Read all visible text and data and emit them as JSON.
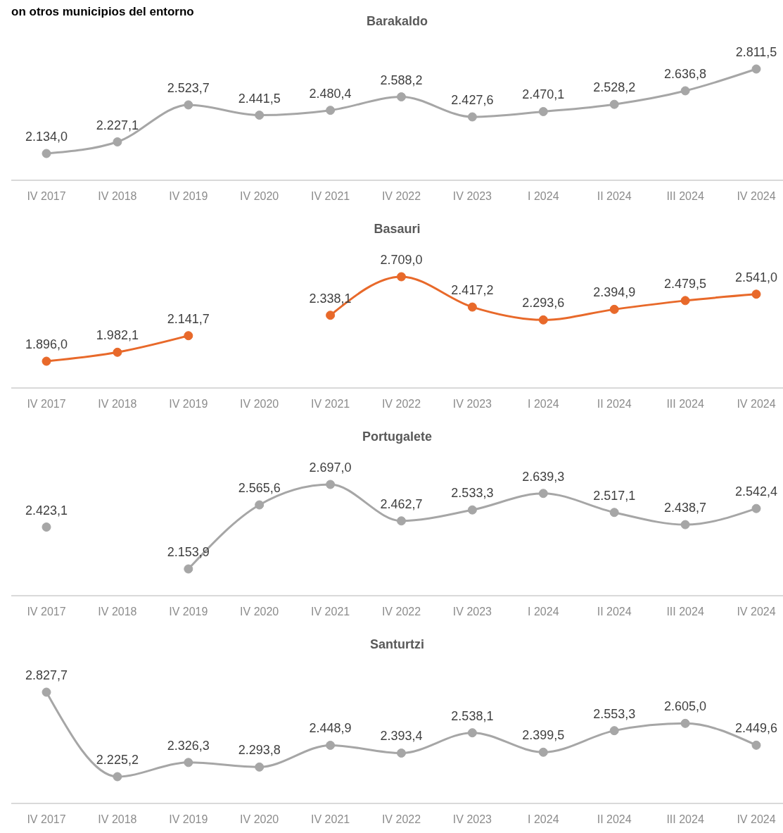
{
  "chart_data": [
    {
      "type": "line",
      "title": "Barakaldo",
      "annotations": [
        "on otros municipios del entorno"
      ],
      "marker": "circle",
      "categories": [
        "IV 2017",
        "IV 2018",
        "IV 2019",
        "IV 2020",
        "IV 2021",
        "IV 2022",
        "IV 2023",
        "I 2024",
        "II 2024",
        "III 2024",
        "IV 2024"
      ],
      "series": [
        {
          "color": "#a6a6a6",
          "values": [
            2134.0,
            2227.1,
            2523.7,
            2441.5,
            2480.4,
            2588.2,
            2427.6,
            2470.1,
            2528.2,
            2636.8,
            2811.5
          ],
          "value_labels": [
            "2.134,0",
            "2.227,1",
            "2.523,7",
            "2.441,5",
            "2.480,4",
            "2.588,2",
            "2.427,6",
            "2.470,1",
            "2.528,2",
            "2.636,8",
            "2.811,5"
          ]
        }
      ]
    },
    {
      "type": "line",
      "title": "Basauri",
      "marker": "circle",
      "categories": [
        "IV 2017",
        "IV 2018",
        "IV 2019",
        "IV 2020",
        "IV 2021",
        "IV 2022",
        "IV 2023",
        "I 2024",
        "II 2024",
        "III 2024",
        "IV 2024"
      ],
      "series": [
        {
          "color": "#e8692a",
          "values": [
            1896.0,
            1982.1,
            2141.7,
            null,
            2338.1,
            2709.0,
            2417.2,
            2293.6,
            2394.9,
            2479.5,
            2541.0
          ],
          "value_labels": [
            "1.896,0",
            "1.982,1",
            "2.141,7",
            null,
            "2.338,1",
            "2.709,0",
            "2.417,2",
            "2.293,6",
            "2.394,9",
            "2.479,5",
            "2.541,0"
          ]
        }
      ]
    },
    {
      "type": "line",
      "title": "Portugalete",
      "marker": "circle",
      "categories": [
        "IV 2017",
        "IV 2018",
        "IV 2019",
        "IV 2020",
        "IV 2021",
        "IV 2022",
        "IV 2023",
        "I 2024",
        "II 2024",
        "III 2024",
        "IV 2024"
      ],
      "series": [
        {
          "color": "#a6a6a6",
          "values": [
            2423.1,
            null,
            2153.9,
            2565.6,
            2697.0,
            2462.7,
            2533.3,
            2639.3,
            2517.1,
            2438.7,
            2542.4
          ],
          "value_labels": [
            "2.423,1",
            null,
            "2.153,9",
            "2.565,6",
            "2.697,0",
            "2.462,7",
            "2.533,3",
            "2.639,3",
            "2.517,1",
            "2.438,7",
            "2.542,4"
          ]
        }
      ]
    },
    {
      "type": "line",
      "title": "Santurtzi",
      "marker": "circle",
      "categories": [
        "IV 2017",
        "IV 2018",
        "IV 2019",
        "IV 2020",
        "IV 2021",
        "IV 2022",
        "IV 2023",
        "I 2024",
        "II 2024",
        "III 2024",
        "IV 2024"
      ],
      "series": [
        {
          "color": "#a6a6a6",
          "values": [
            2827.7,
            2225.2,
            2326.3,
            2293.8,
            2448.9,
            2393.4,
            2538.1,
            2399.5,
            2553.3,
            2605.0,
            2449.6
          ],
          "value_labels": [
            "2.827,7",
            "2.225,2",
            "2.326,3",
            "2.293,8",
            "2.448,9",
            "2.393,4",
            "2.538,1",
            "2.399,5",
            "2.553,3",
            "2.605,0",
            "2.449,6"
          ]
        }
      ]
    }
  ]
}
